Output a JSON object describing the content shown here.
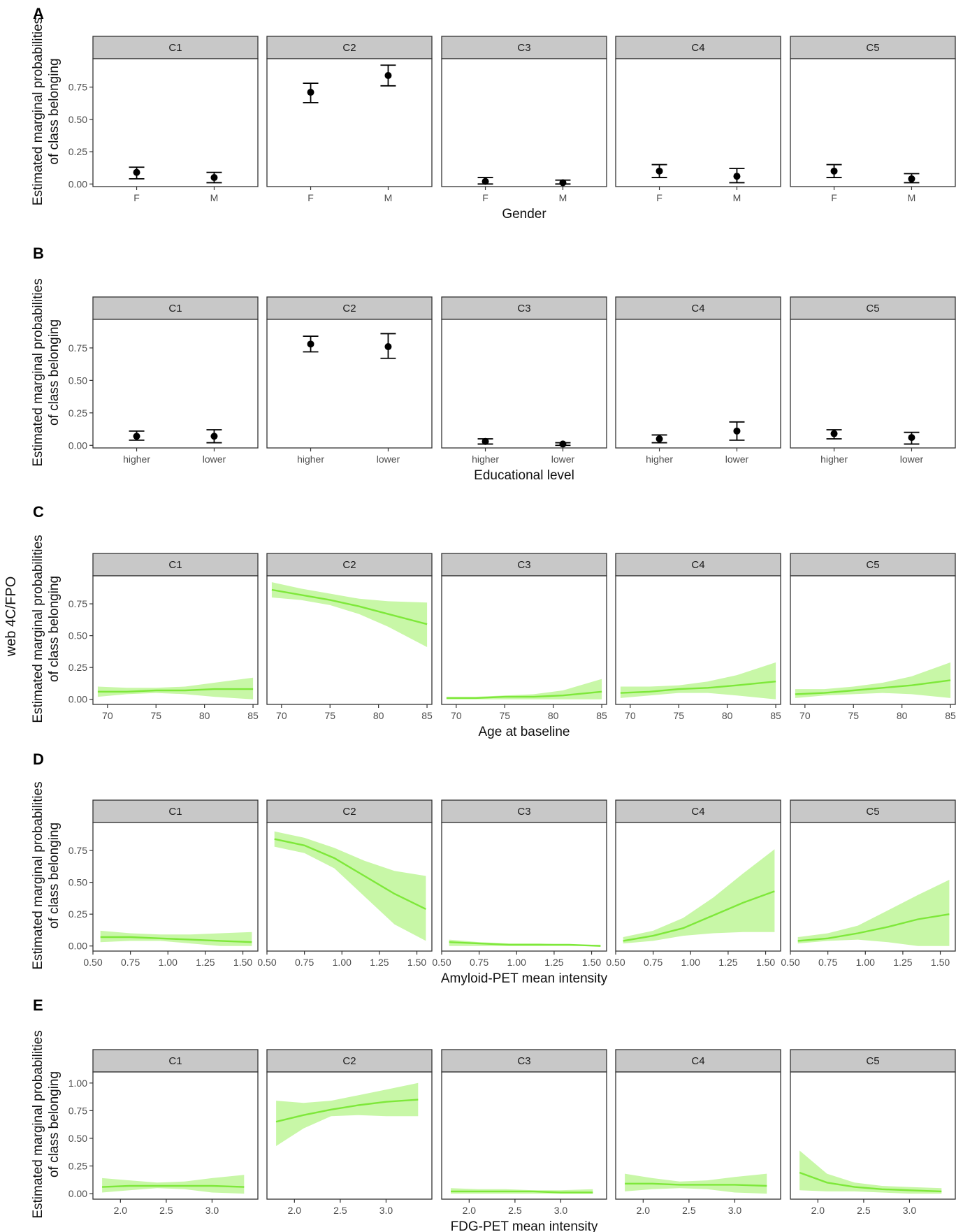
{
  "side_label": "web 4C/FPO",
  "style": {
    "strip_fill": "#c8c8c8",
    "point_color": "#000000",
    "line_color": "#7ee83a",
    "ribbon_color": "#b5f48a"
  },
  "chart_data": [
    {
      "panel": "A",
      "type": "scatter",
      "subtype": "point-errorbar",
      "facets": [
        "C1",
        "C2",
        "C3",
        "C4",
        "C5"
      ],
      "xlabel": "Gender",
      "ylabel": [
        "Estimated marginal probabilities",
        "of class belonging"
      ],
      "categories": [
        "F",
        "M"
      ],
      "y_ticks": [
        "0.00",
        "0.25",
        "0.50",
        "0.75"
      ],
      "ylim": [
        -0.02,
        0.97
      ],
      "series": [
        {
          "facet": "C1",
          "values": [
            0.09,
            0.05
          ],
          "lower": [
            0.04,
            0.01
          ],
          "upper": [
            0.13,
            0.09
          ]
        },
        {
          "facet": "C2",
          "values": [
            0.71,
            0.84
          ],
          "lower": [
            0.63,
            0.76
          ],
          "upper": [
            0.78,
            0.92
          ]
        },
        {
          "facet": "C3",
          "values": [
            0.02,
            0.01
          ],
          "lower": [
            0.0,
            0.0
          ],
          "upper": [
            0.05,
            0.03
          ]
        },
        {
          "facet": "C4",
          "values": [
            0.1,
            0.06
          ],
          "lower": [
            0.05,
            0.01
          ],
          "upper": [
            0.15,
            0.12
          ]
        },
        {
          "facet": "C5",
          "values": [
            0.1,
            0.04
          ],
          "lower": [
            0.05,
            0.01
          ],
          "upper": [
            0.15,
            0.08
          ]
        }
      ]
    },
    {
      "panel": "B",
      "type": "scatter",
      "subtype": "point-errorbar",
      "facets": [
        "C1",
        "C2",
        "C3",
        "C4",
        "C5"
      ],
      "xlabel": "Educational level",
      "ylabel": [
        "Estimated marginal probabilities",
        "of class belonging"
      ],
      "categories": [
        "higher",
        "lower"
      ],
      "y_ticks": [
        "0.00",
        "0.25",
        "0.50",
        "0.75"
      ],
      "ylim": [
        -0.02,
        0.97
      ],
      "series": [
        {
          "facet": "C1",
          "values": [
            0.07,
            0.07
          ],
          "lower": [
            0.04,
            0.02
          ],
          "upper": [
            0.11,
            0.12
          ]
        },
        {
          "facet": "C2",
          "values": [
            0.78,
            0.76
          ],
          "lower": [
            0.72,
            0.67
          ],
          "upper": [
            0.84,
            0.86
          ]
        },
        {
          "facet": "C3",
          "values": [
            0.03,
            0.01
          ],
          "lower": [
            0.01,
            0.0
          ],
          "upper": [
            0.05,
            0.02
          ]
        },
        {
          "facet": "C4",
          "values": [
            0.05,
            0.11
          ],
          "lower": [
            0.02,
            0.04
          ],
          "upper": [
            0.08,
            0.18
          ]
        },
        {
          "facet": "C5",
          "values": [
            0.09,
            0.06
          ],
          "lower": [
            0.05,
            0.01
          ],
          "upper": [
            0.12,
            0.1
          ]
        }
      ]
    },
    {
      "panel": "C",
      "type": "line",
      "subtype": "line-ribbon",
      "facets": [
        "C1",
        "C2",
        "C3",
        "C4",
        "C5"
      ],
      "xlabel": "Age at baseline",
      "ylabel": [
        "Estimated marginal probabilities",
        "of class belonging"
      ],
      "x_ticks": [
        "70",
        "75",
        "80",
        "85"
      ],
      "xlim": [
        68.5,
        85.5
      ],
      "y_ticks": [
        "0.00",
        "0.25",
        "0.50",
        "0.75"
      ],
      "ylim": [
        -0.04,
        0.97
      ],
      "x": [
        69,
        72,
        75,
        78,
        81,
        85
      ],
      "series": [
        {
          "facet": "C1",
          "values": [
            0.06,
            0.06,
            0.07,
            0.07,
            0.08,
            0.08
          ],
          "lower": [
            0.02,
            0.04,
            0.05,
            0.04,
            0.02,
            0.0
          ],
          "upper": [
            0.1,
            0.09,
            0.09,
            0.1,
            0.13,
            0.17
          ]
        },
        {
          "facet": "C2",
          "values": [
            0.86,
            0.82,
            0.78,
            0.73,
            0.67,
            0.59
          ],
          "lower": [
            0.8,
            0.78,
            0.74,
            0.67,
            0.57,
            0.41
          ],
          "upper": [
            0.92,
            0.87,
            0.83,
            0.79,
            0.77,
            0.76
          ]
        },
        {
          "facet": "C3",
          "values": [
            0.01,
            0.01,
            0.02,
            0.02,
            0.03,
            0.06
          ],
          "lower": [
            0.0,
            0.0,
            0.0,
            0.0,
            0.0,
            0.0
          ],
          "upper": [
            0.02,
            0.02,
            0.03,
            0.04,
            0.07,
            0.16
          ]
        },
        {
          "facet": "C4",
          "values": [
            0.05,
            0.06,
            0.08,
            0.09,
            0.11,
            0.14
          ],
          "lower": [
            0.01,
            0.03,
            0.05,
            0.05,
            0.03,
            0.0
          ],
          "upper": [
            0.1,
            0.1,
            0.11,
            0.14,
            0.19,
            0.29
          ]
        },
        {
          "facet": "C5",
          "values": [
            0.04,
            0.05,
            0.07,
            0.09,
            0.11,
            0.15
          ],
          "lower": [
            0.01,
            0.03,
            0.04,
            0.05,
            0.04,
            0.01
          ],
          "upper": [
            0.08,
            0.08,
            0.1,
            0.13,
            0.18,
            0.29
          ]
        }
      ]
    },
    {
      "panel": "D",
      "type": "line",
      "subtype": "line-ribbon",
      "facets": [
        "C1",
        "C2",
        "C3",
        "C4",
        "C5"
      ],
      "xlabel": "Amyloid-PET mean intensity",
      "ylabel": [
        "Estimated marginal probabilities",
        "of class belonging"
      ],
      "x_ticks": [
        "0.50",
        "0.75",
        "1.00",
        "1.25",
        "1.50"
      ],
      "xlim": [
        0.5,
        1.6
      ],
      "y_ticks": [
        "0.00",
        "0.25",
        "0.50",
        "0.75"
      ],
      "ylim": [
        -0.04,
        0.97
      ],
      "x": [
        0.55,
        0.75,
        0.95,
        1.15,
        1.35,
        1.56
      ],
      "series": [
        {
          "facet": "C1",
          "values": [
            0.07,
            0.07,
            0.06,
            0.05,
            0.04,
            0.03
          ],
          "lower": [
            0.03,
            0.04,
            0.04,
            0.02,
            0.0,
            0.0
          ],
          "upper": [
            0.12,
            0.1,
            0.09,
            0.09,
            0.1,
            0.11
          ]
        },
        {
          "facet": "C2",
          "values": [
            0.84,
            0.79,
            0.69,
            0.55,
            0.41,
            0.29
          ],
          "lower": [
            0.78,
            0.73,
            0.61,
            0.39,
            0.17,
            0.04
          ],
          "upper": [
            0.9,
            0.85,
            0.77,
            0.67,
            0.59,
            0.55
          ]
        },
        {
          "facet": "C3",
          "values": [
            0.03,
            0.02,
            0.01,
            0.01,
            0.01,
            0.0
          ],
          "lower": [
            0.0,
            0.0,
            0.0,
            0.0,
            0.0,
            0.0
          ],
          "upper": [
            0.05,
            0.03,
            0.02,
            0.02,
            0.01,
            0.01
          ]
        },
        {
          "facet": "C4",
          "values": [
            0.04,
            0.08,
            0.14,
            0.24,
            0.34,
            0.43
          ],
          "lower": [
            0.02,
            0.04,
            0.08,
            0.1,
            0.11,
            0.11
          ],
          "upper": [
            0.07,
            0.12,
            0.22,
            0.38,
            0.57,
            0.76
          ]
        },
        {
          "facet": "C5",
          "values": [
            0.04,
            0.06,
            0.1,
            0.15,
            0.21,
            0.25
          ],
          "lower": [
            0.02,
            0.04,
            0.05,
            0.03,
            0.0,
            0.0
          ],
          "upper": [
            0.07,
            0.1,
            0.16,
            0.28,
            0.4,
            0.52
          ]
        }
      ]
    },
    {
      "panel": "E",
      "type": "line",
      "subtype": "line-ribbon",
      "facets": [
        "C1",
        "C2",
        "C3",
        "C4",
        "C5"
      ],
      "xlabel": "FDG-PET mean intensity",
      "ylabel": [
        "Estimated marginal probabilities",
        "of class belonging"
      ],
      "x_ticks": [
        "2.0",
        "2.5",
        "3.0"
      ],
      "xlim": [
        1.7,
        3.5
      ],
      "y_ticks": [
        "0.00",
        "0.25",
        "0.50",
        "0.75",
        "1.00"
      ],
      "ylim": [
        -0.05,
        1.1
      ],
      "x": [
        1.8,
        2.1,
        2.4,
        2.7,
        3.0,
        3.35
      ],
      "series": [
        {
          "facet": "C1",
          "values": [
            0.06,
            0.07,
            0.07,
            0.07,
            0.07,
            0.06
          ],
          "lower": [
            0.01,
            0.03,
            0.05,
            0.04,
            0.01,
            0.0
          ],
          "upper": [
            0.14,
            0.12,
            0.1,
            0.11,
            0.14,
            0.17
          ]
        },
        {
          "facet": "C2",
          "values": [
            0.65,
            0.71,
            0.76,
            0.8,
            0.83,
            0.85
          ],
          "lower": [
            0.43,
            0.59,
            0.7,
            0.71,
            0.7,
            0.7
          ],
          "upper": [
            0.84,
            0.82,
            0.84,
            0.89,
            0.94,
            1.0
          ]
        },
        {
          "facet": "C3",
          "values": [
            0.02,
            0.02,
            0.02,
            0.02,
            0.01,
            0.01
          ],
          "lower": [
            0.0,
            0.0,
            0.0,
            0.0,
            0.0,
            0.0
          ],
          "upper": [
            0.05,
            0.04,
            0.04,
            0.03,
            0.03,
            0.04
          ]
        },
        {
          "facet": "C4",
          "values": [
            0.09,
            0.09,
            0.08,
            0.08,
            0.08,
            0.07
          ],
          "lower": [
            0.02,
            0.04,
            0.05,
            0.04,
            0.01,
            0.0
          ],
          "upper": [
            0.18,
            0.14,
            0.11,
            0.12,
            0.15,
            0.18
          ]
        },
        {
          "facet": "C5",
          "values": [
            0.19,
            0.1,
            0.06,
            0.04,
            0.03,
            0.02
          ],
          "lower": [
            0.03,
            0.02,
            0.02,
            0.01,
            0.0,
            0.0
          ],
          "upper": [
            0.39,
            0.18,
            0.1,
            0.07,
            0.06,
            0.05
          ]
        }
      ]
    }
  ]
}
